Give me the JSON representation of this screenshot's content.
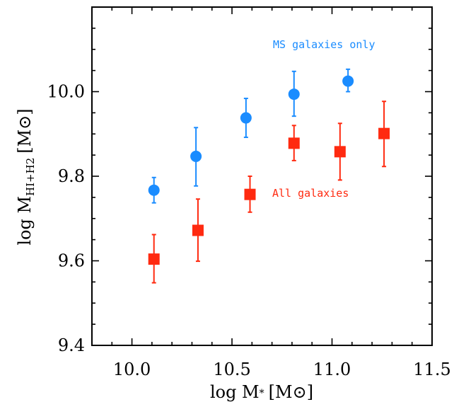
{
  "chart_data": {
    "type": "scatter",
    "x_axis": {
      "label_main": "log M",
      "label_sub": "*",
      "label_unit": "[M",
      "label_unit_close": "]",
      "range": [
        9.8,
        11.5
      ],
      "ticks": [
        "10.0",
        "10.5",
        "11.0",
        "11.5"
      ],
      "tick_values": [
        10.0,
        10.5,
        11.0,
        11.5
      ]
    },
    "y_axis": {
      "label_main": "log M",
      "label_sub": "HI+H2",
      "label_unit": "[M",
      "label_unit_close": "]",
      "range": [
        9.4,
        10.2
      ],
      "ticks": [
        "9.4",
        "9.6",
        "9.8",
        "10.0"
      ],
      "tick_values": [
        9.4,
        9.6,
        9.8,
        10.0
      ]
    },
    "grid": false,
    "series": [
      {
        "name": "MS galaxies only",
        "color": "#1a8cff",
        "marker": "circle",
        "points": [
          {
            "x": 10.11,
            "y": 9.767,
            "err_low": 0.03,
            "err_high": 0.03
          },
          {
            "x": 10.32,
            "y": 9.847,
            "err_low": 0.07,
            "err_high": 0.068
          },
          {
            "x": 10.57,
            "y": 9.938,
            "err_low": 0.046,
            "err_high": 0.046
          },
          {
            "x": 10.81,
            "y": 9.994,
            "err_low": 0.052,
            "err_high": 0.054
          },
          {
            "x": 11.08,
            "y": 10.025,
            "err_low": 0.025,
            "err_high": 0.028
          }
        ]
      },
      {
        "name": "All galaxies",
        "color": "#ff2a10",
        "marker": "square",
        "points": [
          {
            "x": 10.11,
            "y": 9.604,
            "err_low": 0.056,
            "err_high": 0.058
          },
          {
            "x": 10.33,
            "y": 9.672,
            "err_low": 0.073,
            "err_high": 0.074
          },
          {
            "x": 10.59,
            "y": 9.757,
            "err_low": 0.042,
            "err_high": 0.043
          },
          {
            "x": 10.81,
            "y": 9.878,
            "err_low": 0.041,
            "err_high": 0.042
          },
          {
            "x": 11.04,
            "y": 9.858,
            "err_low": 0.067,
            "err_high": 0.067
          },
          {
            "x": 11.26,
            "y": 9.901,
            "err_low": 0.078,
            "err_high": 0.076
          }
        ]
      }
    ],
    "legend_placement": "inside, next to each series"
  }
}
